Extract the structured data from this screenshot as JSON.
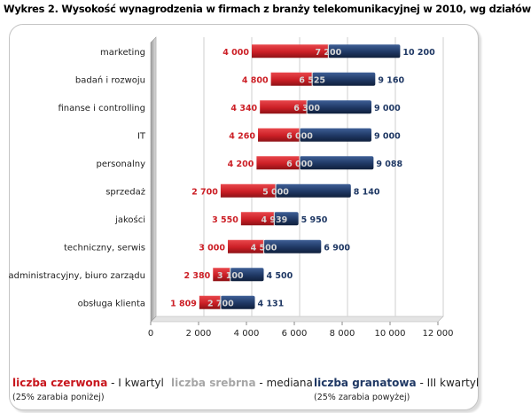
{
  "title": "Wykres 2. Wysokość wynagrodzenia w firmach z branży telekomunikacyjnej w 2010, wg działów",
  "legend": {
    "q1": {
      "name": "liczba czerwona",
      "desc": "- I kwartyl",
      "note": "(25% zarabia poniżej)"
    },
    "median": {
      "name": "liczba srebrna",
      "desc": "- mediana"
    },
    "q3": {
      "name": "liczba granatowa",
      "desc": "- III kwartyl",
      "note": "(25% zarabia powyżej)"
    }
  },
  "colors": {
    "q1": "#cc1f26",
    "q3": "#1f3864",
    "grid": "#cfcfcf",
    "wall": "#c8c8c8"
  },
  "chart_data": {
    "type": "bar",
    "subtype": "floating-range",
    "categories": [
      "marketing",
      "badań i rozwoju",
      "finanse i controlling",
      "IT",
      "personalny",
      "sprzedaż",
      "jakości",
      "techniczny, serwis",
      "administracyjny, biuro zarządu",
      "obsługa klienta"
    ],
    "series": [
      {
        "name": "I kwartyl",
        "values": [
          4000,
          4800,
          4340,
          4260,
          4200,
          2700,
          3550,
          3000,
          2380,
          1809
        ],
        "labels": [
          "4 000",
          "4 800",
          "4 340",
          "4 260",
          "4 200",
          "2 700",
          "3 550",
          "3 000",
          "2 380",
          "1 809"
        ]
      },
      {
        "name": "mediana",
        "values": [
          7200,
          6525,
          6300,
          6000,
          6000,
          5000,
          4939,
          4500,
          3100,
          2700
        ],
        "labels": [
          "7 200",
          "6 525",
          "6 300",
          "6 000",
          "6 000",
          "5 000",
          "4 939",
          "4 500",
          "3 100",
          "2 700"
        ]
      },
      {
        "name": "III kwartyl",
        "values": [
          10200,
          9160,
          9000,
          9000,
          9088,
          8140,
          5950,
          6900,
          4500,
          4131
        ],
        "labels": [
          "10 200",
          "9 160",
          "9 000",
          "9 000",
          "9 088",
          "8 140",
          "5 950",
          "6 900",
          "4 500",
          "4 131"
        ]
      }
    ],
    "x_ticks": [
      "0",
      "2 000",
      "4 000",
      "6 000",
      "8 000",
      "10 000",
      "12 000"
    ],
    "xlim": [
      0,
      12000
    ],
    "grid": true,
    "legend_position": "bottom"
  }
}
